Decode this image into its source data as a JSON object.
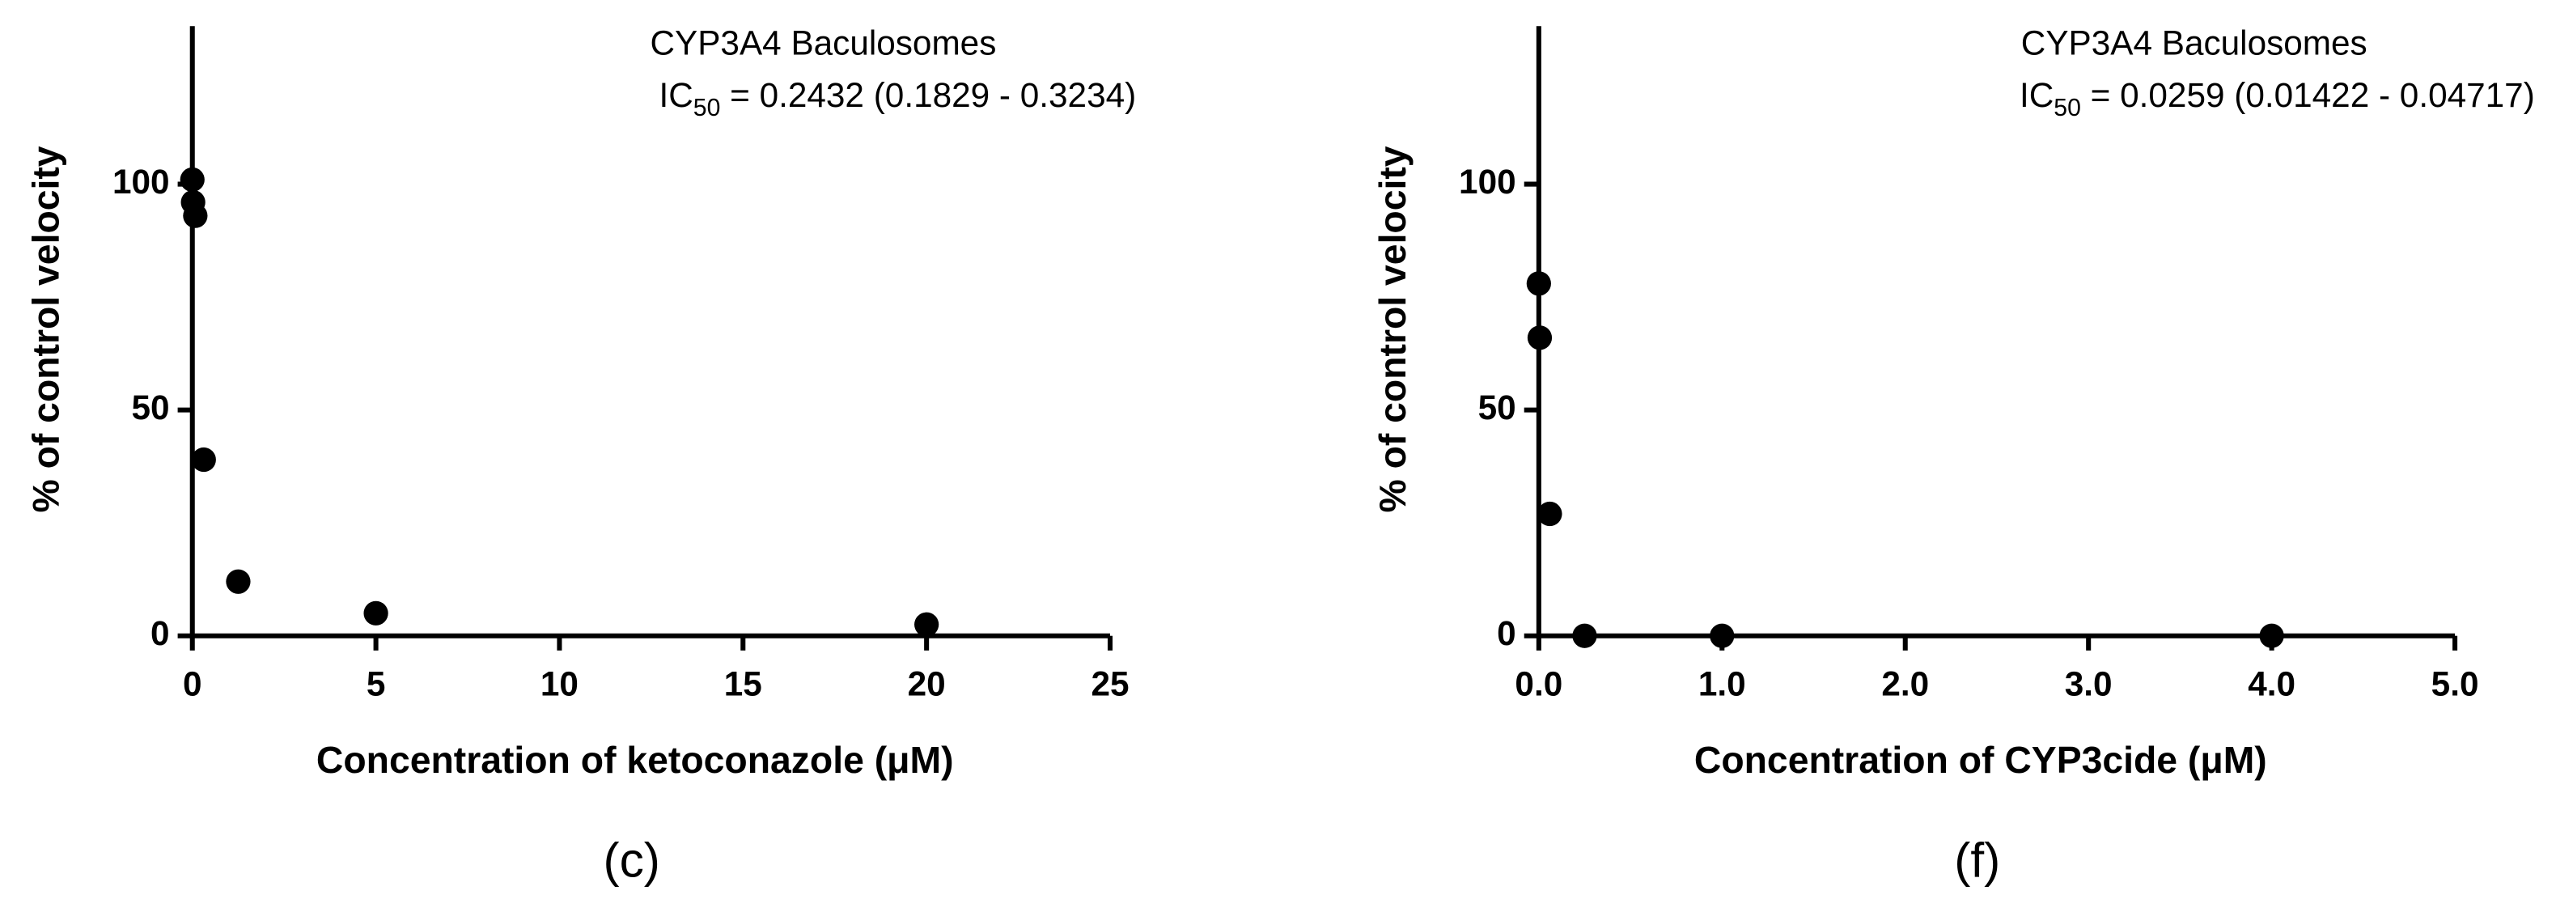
{
  "chart_data": [
    {
      "type": "scatter",
      "title": "CYP3A4 Baculosomes",
      "ic_label": "IC",
      "ic_subscript": "50",
      "ic_text": " = 0.2432 (0.1829 - 0.3234)",
      "x_label": "Concentration of ketoconazole (μM)",
      "y_label": "% of control velocity",
      "panel_label": "(c)",
      "color": "#000000",
      "x": [
        0,
        0.02,
        0.08,
        0.31,
        1.25,
        5,
        20
      ],
      "values": [
        101,
        96,
        93,
        39,
        12,
        5,
        2.5
      ],
      "xlim": [
        0,
        25
      ],
      "xticks": [
        0,
        5,
        10,
        15,
        20,
        25
      ],
      "ylim": [
        0,
        135
      ],
      "yticks": [
        0,
        50,
        100
      ]
    },
    {
      "type": "scatter",
      "title": "CYP3A4 Baculosomes",
      "ic_label": "IC",
      "ic_subscript": "50",
      "ic_text": " = 0.0259 (0.01422 - 0.04717)",
      "x_label": "Concentration of CYP3cide (μM)",
      "y_label": "% of control velocity",
      "panel_label": "(f)",
      "color": "#000000",
      "x": [
        0,
        0.005,
        0.06,
        0.25,
        1,
        4
      ],
      "values": [
        78,
        66,
        27,
        0,
        0,
        0
      ],
      "xlim": [
        0,
        5
      ],
      "xticks": [
        {
          "value": 0,
          "label": "0.0"
        },
        {
          "value": 1,
          "label": "1.0"
        },
        {
          "value": 2,
          "label": "2.0"
        },
        {
          "value": 3,
          "label": "3.0"
        },
        {
          "value": 4,
          "label": "4.0"
        },
        {
          "value": 5,
          "label": "5.0"
        }
      ],
      "ylim": [
        0,
        135
      ],
      "yticks": [
        0,
        50,
        100
      ]
    }
  ]
}
